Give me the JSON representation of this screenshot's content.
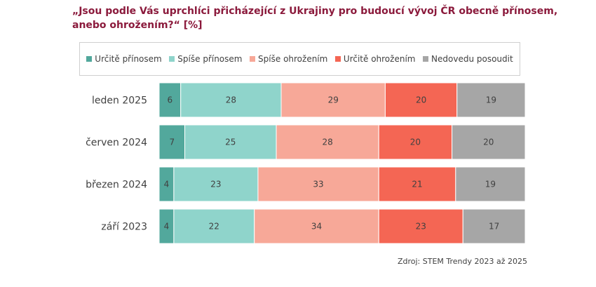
{
  "title": "„Jsou podle Vás uprchlíci přicházející z Ukrajiny pro budoucí vývoj ČR obecně přínosem, anebo ohrožením?“ [%]",
  "source": "Zdroj: STEM Trendy 2023 až 2025",
  "chart_data": {
    "type": "bar",
    "orientation": "horizontal",
    "stacked": true,
    "categories": [
      "leden 2025",
      "červen 2024",
      "březen 2024",
      "září 2023"
    ],
    "series": [
      {
        "name": "Určitě přínosem",
        "color": "#52a89c",
        "values": [
          6,
          7,
          4,
          4
        ]
      },
      {
        "name": "Spíše přínosem",
        "color": "#8fd4cb",
        "values": [
          28,
          25,
          23,
          22
        ]
      },
      {
        "name": "Spíše ohrožením",
        "color": "#f7a898",
        "values": [
          29,
          28,
          33,
          34
        ]
      },
      {
        "name": "Určitě ohrožením",
        "color": "#f46654",
        "values": [
          20,
          20,
          21,
          23
        ]
      },
      {
        "name": "Nedovedu posoudit",
        "color": "#a6a6a6",
        "values": [
          19,
          20,
          19,
          17
        ]
      }
    ],
    "legend_position": "top"
  }
}
